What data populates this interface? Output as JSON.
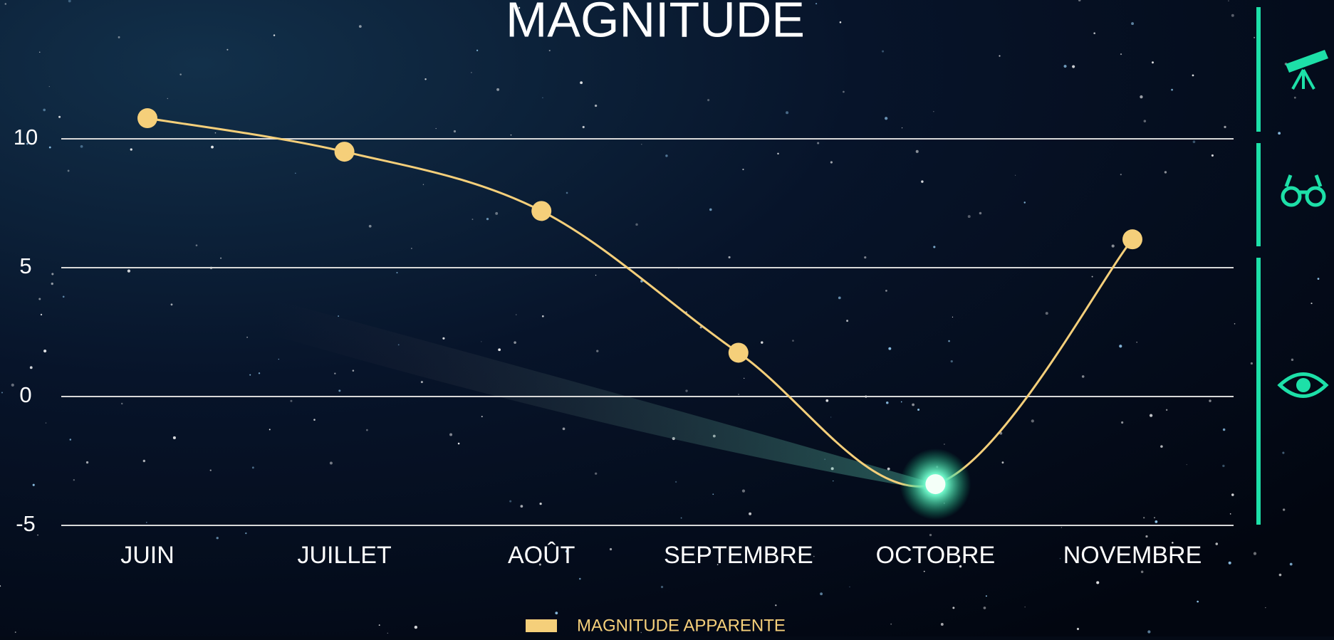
{
  "chart_data": {
    "type": "line",
    "title": "MAGNITUDE",
    "categories": [
      "JUIN",
      "JUILLET",
      "AOÛT",
      "SEPTEMBRE",
      "OCTOBRE",
      "NOVEMBRE"
    ],
    "series": [
      {
        "name": "MAGNITUDE APPARENTE",
        "color": "#f5cf7a",
        "values": [
          10.8,
          9.5,
          7.2,
          1.7,
          -3.4,
          6.1
        ]
      }
    ],
    "ylim": [
      -5,
      10
    ],
    "yticks": [
      -5,
      0,
      5,
      10
    ],
    "grid": true,
    "legend": "bottom",
    "smooth": true
  }
}
